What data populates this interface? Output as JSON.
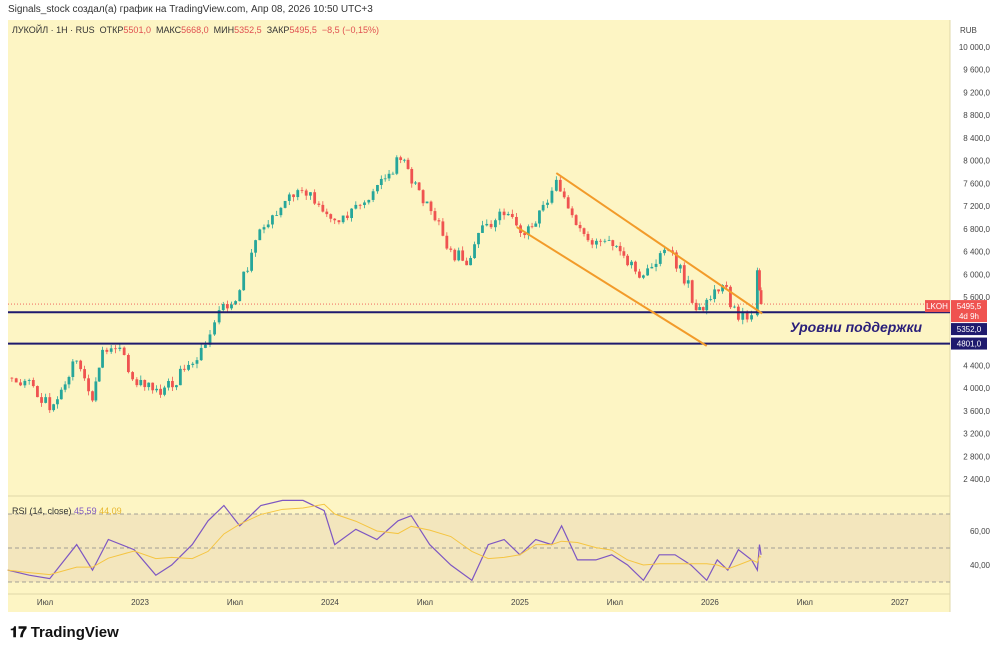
{
  "header": "Signals_stock создал(а) график на TradingView.com, Апр 08, 2026 10:50 UTC+3",
  "legend": {
    "symbol": "ЛУКОЙЛ · 1Н · RUS",
    "open_label": "ОТКР",
    "open": "5501,0",
    "high_label": "МАКС",
    "high": "5668,0",
    "low_label": "МИН",
    "low": "5352,5",
    "close_label": "ЗАКР",
    "close": "5495,5",
    "change": "−8,5 (−0,15%)"
  },
  "currency": "RUB",
  "annotation": "Уровни поддержки",
  "logo": "TradingView",
  "colors": {
    "bg": "#fdf5c4",
    "up": "#26a69a",
    "down": "#ef5350",
    "channel": "#f29b2a",
    "support": "#1e1a6e",
    "rsi": "#7e57c2",
    "rsi_ma": "#f5c542"
  },
  "chart_data": [
    {
      "type": "candlestick",
      "ylim": [
        2200,
        10200
      ],
      "yticks": [
        "10 000,0",
        "9 600,0",
        "9 200,0",
        "8 800,0",
        "8 400,0",
        "8 000,0",
        "7 600,0",
        "7 200,0",
        "6 800,0",
        "6 400,0",
        "6 000,0",
        "5 600,0",
        "4 400,0",
        "4 000,0",
        "3 600,0",
        "3 200,0",
        "2 800,0",
        "2 400,0"
      ],
      "ytick_values": [
        10000,
        9600,
        9200,
        8800,
        8400,
        8000,
        7600,
        7200,
        6800,
        6400,
        6000,
        5600,
        4400,
        4000,
        3600,
        3200,
        2800,
        2400
      ],
      "xticks": [
        {
          "label": "Июл",
          "date": "2022-07"
        },
        {
          "label": "2023",
          "date": "2023-01"
        },
        {
          "label": "Июл",
          "date": "2023-07"
        },
        {
          "label": "2024",
          "date": "2024-01"
        },
        {
          "label": "Июл",
          "date": "2024-07"
        },
        {
          "label": "2025",
          "date": "2025-01"
        },
        {
          "label": "Июл",
          "date": "2025-07"
        },
        {
          "label": "2026",
          "date": "2026-01"
        },
        {
          "label": "Июл",
          "date": "2026-07"
        },
        {
          "label": "2027",
          "date": "2027-01"
        }
      ],
      "closes": [
        [
          "2022-04-20",
          4200
        ],
        [
          "2022-06-01",
          4160
        ],
        [
          "2022-07-10",
          3630
        ],
        [
          "2022-09-01",
          4500
        ],
        [
          "2022-10-01",
          3800
        ],
        [
          "2022-10-20",
          4690
        ],
        [
          "2022-12-01",
          4600
        ],
        [
          "2022-12-25",
          4070
        ],
        [
          "2023-02-10",
          3900
        ],
        [
          "2023-03-25",
          4340
        ],
        [
          "2023-05-05",
          4780
        ],
        [
          "2023-06-01",
          5390
        ],
        [
          "2023-07-10",
          5740
        ],
        [
          "2023-08-10",
          6620
        ],
        [
          "2023-09-20",
          7060
        ],
        [
          "2023-10-30",
          7500
        ],
        [
          "2023-12-10",
          7240
        ],
        [
          "2024-01-10",
          6970
        ],
        [
          "2024-02-20",
          7240
        ],
        [
          "2024-04-01",
          7590
        ],
        [
          "2024-05-15",
          8030
        ],
        [
          "2024-06-20",
          7500
        ],
        [
          "2024-07-20",
          6970
        ],
        [
          "2024-08-20",
          6450
        ],
        [
          "2024-09-20",
          6180
        ],
        [
          "2024-10-20",
          6880
        ],
        [
          "2024-12-01",
          7060
        ],
        [
          "2025-01-10",
          6710
        ],
        [
          "2025-02-15",
          7240
        ],
        [
          "2025-03-10",
          7680
        ],
        [
          "2025-04-10",
          7060
        ],
        [
          "2025-05-10",
          6620
        ],
        [
          "2025-06-20",
          6620
        ],
        [
          "2025-07-25",
          6180
        ],
        [
          "2025-08-25",
          6000
        ],
        [
          "2025-10-05",
          6450
        ],
        [
          "2025-11-05",
          6180
        ],
        [
          "2025-12-05",
          5390
        ],
        [
          "2025-12-25",
          5570
        ],
        [
          "2026-01-25",
          5830
        ],
        [
          "2026-02-25",
          5220
        ],
        [
          "2026-03-20",
          5300
        ],
        [
          "2026-04-01",
          6090
        ],
        [
          "2026-04-05",
          5740
        ],
        [
          "2026-04-08",
          5495.5
        ]
      ],
      "last_price": {
        "symbol": "LKOH",
        "value": "5495,5",
        "countdown": "4d 9h",
        "price": 5495.5
      },
      "support_levels": [
        {
          "value": 5352,
          "label": "5352,0"
        },
        {
          "value": 4801,
          "label": "4801,0"
        }
      ],
      "channel": {
        "upper": [
          [
            "2025-03-10",
            7800
          ],
          [
            "2026-04-10",
            5330
          ]
        ],
        "lower": [
          [
            "2024-12-25",
            6850
          ],
          [
            "2025-12-25",
            4760
          ]
        ]
      }
    },
    {
      "type": "line",
      "title": "RSI (14, close)",
      "value": "45,59",
      "ma_value": "44,09",
      "ylim": [
        25,
        75
      ],
      "bands": [
        70,
        30
      ],
      "yticks": [
        "60,00",
        "40,00"
      ],
      "ytick_values": [
        60,
        40
      ],
      "values": [
        [
          "2022-04-20",
          37
        ],
        [
          "2022-06-01",
          34
        ],
        [
          "2022-07-10",
          32
        ],
        [
          "2022-09-01",
          52
        ],
        [
          "2022-10-01",
          37
        ],
        [
          "2022-11-01",
          55
        ],
        [
          "2022-12-20",
          49
        ],
        [
          "2023-02-01",
          34
        ],
        [
          "2023-03-01",
          40
        ],
        [
          "2023-04-10",
          52
        ],
        [
          "2023-05-10",
          66
        ],
        [
          "2023-06-10",
          75
        ],
        [
          "2023-07-10",
          63
        ],
        [
          "2023-08-20",
          75
        ],
        [
          "2023-10-01",
          78
        ],
        [
          "2023-11-10",
          78
        ],
        [
          "2023-12-20",
          72
        ],
        [
          "2024-01-10",
          52
        ],
        [
          "2024-02-20",
          61
        ],
        [
          "2024-03-30",
          55
        ],
        [
          "2024-05-10",
          66
        ],
        [
          "2024-06-05",
          69
        ],
        [
          "2024-07-10",
          52
        ],
        [
          "2024-08-20",
          40
        ],
        [
          "2024-09-30",
          31
        ],
        [
          "2024-11-01",
          52
        ],
        [
          "2024-12-01",
          55
        ],
        [
          "2025-01-01",
          46
        ],
        [
          "2025-02-01",
          55
        ],
        [
          "2025-03-01",
          52
        ],
        [
          "2025-03-20",
          63
        ],
        [
          "2025-04-20",
          43
        ],
        [
          "2025-05-25",
          43
        ],
        [
          "2025-06-25",
          46
        ],
        [
          "2025-07-25",
          40
        ],
        [
          "2025-08-25",
          31
        ],
        [
          "2025-09-25",
          46
        ],
        [
          "2025-10-25",
          46
        ],
        [
          "2025-11-25",
          40
        ],
        [
          "2025-12-25",
          31
        ],
        [
          "2026-01-15",
          43
        ],
        [
          "2026-02-05",
          37
        ],
        [
          "2026-02-25",
          49
        ],
        [
          "2026-03-20",
          43
        ],
        [
          "2026-04-01",
          37
        ],
        [
          "2026-04-05",
          52
        ],
        [
          "2026-04-08",
          46
        ]
      ]
    }
  ]
}
